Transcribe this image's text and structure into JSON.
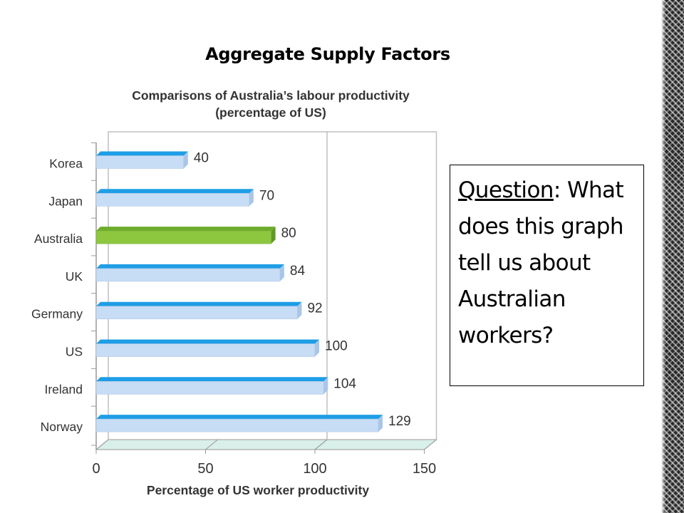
{
  "slide": {
    "title": "Aggregate Supply Factors",
    "question_label": "Question",
    "question_text": ": What does this graph tell us about Australian workers?"
  },
  "colors": {
    "bar_top": "#1e9ee6",
    "bar_face": "#c7dcf5",
    "highlight_top": "#6eab2c",
    "highlight_face": "#8dc63f",
    "floor": "#d9efe9",
    "wall": "#bfbfbf"
  },
  "chart_data": {
    "type": "bar",
    "orientation": "horizontal",
    "title": "Comparisons of Australia’s labour productivity",
    "subtitle": "(percentage of US)",
    "xlabel": "Percentage of US worker productivity",
    "ylabel": "",
    "categories": [
      "Korea",
      "Japan",
      "Australia",
      "UK",
      "Germany",
      "US",
      "Ireland",
      "Norway"
    ],
    "values": [
      40,
      70,
      80,
      84,
      92,
      100,
      104,
      129
    ],
    "highlight": "Australia",
    "xlim": [
      0,
      150
    ],
    "xticks": [
      0,
      50,
      100,
      150
    ],
    "gridlines_at": [
      100
    ],
    "grid": false,
    "style": "3d",
    "legend": "none"
  }
}
